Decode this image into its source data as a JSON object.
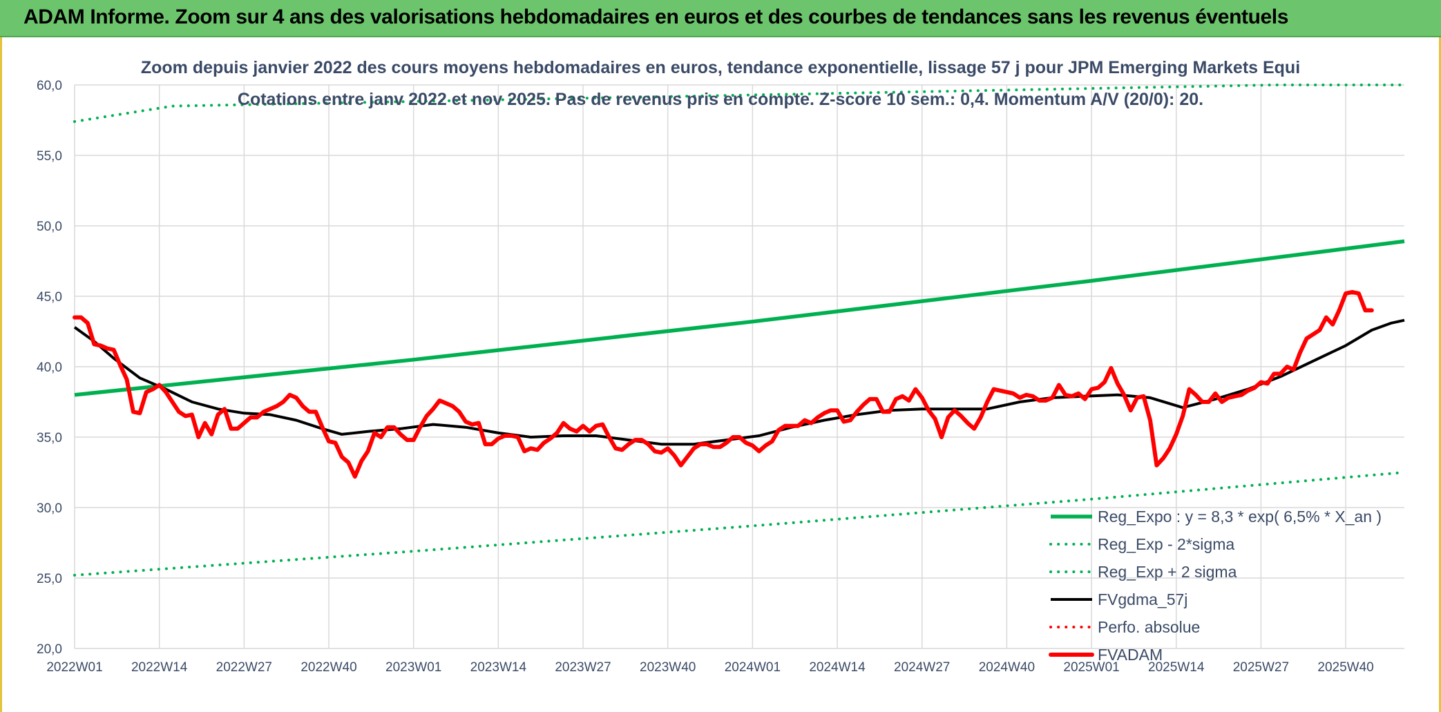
{
  "header": {
    "title": "ADAM Informe. Zoom sur 4 ans des valorisations hebdomadaires en euros et des courbes de tendances sans les revenus éventuels"
  },
  "colors": {
    "green": "#00b050",
    "red": "#ff0000",
    "black": "#000000",
    "grid": "#d9d9d9",
    "text": "#3a4a66",
    "banner": "#6cc56c"
  },
  "chart_data": {
    "type": "line",
    "title": "Zoom depuis janvier 2022 des cours moyens hebdomadaires en euros, tendance exponentielle, lissage 57 j pour JPM Emerging Markets Equi",
    "subtitle": "Cotations entre janv 2022 et nov 2025. Pas de revenus pris en compte. Z-score 10 sem.: 0,4. Momentum A/V (20/0): 20.",
    "xlabel": "",
    "ylabel": "",
    "ylim": [
      20,
      60
    ],
    "yticks": [
      "20,0",
      "25,0",
      "30,0",
      "35,0",
      "40,0",
      "45,0",
      "50,0",
      "55,0",
      "60,0"
    ],
    "yticks_values": [
      20,
      25,
      30,
      35,
      40,
      45,
      50,
      55,
      60
    ],
    "x_ticks": [
      {
        "i": 0,
        "label": "2022W01"
      },
      {
        "i": 13,
        "label": "2022W14"
      },
      {
        "i": 26,
        "label": "2022W27"
      },
      {
        "i": 39,
        "label": "2022W40"
      },
      {
        "i": 52,
        "label": "2023W01"
      },
      {
        "i": 65,
        "label": "2023W14"
      },
      {
        "i": 78,
        "label": "2023W27"
      },
      {
        "i": 91,
        "label": "2023W40"
      },
      {
        "i": 104,
        "label": "2024W01"
      },
      {
        "i": 117,
        "label": "2024W14"
      },
      {
        "i": 130,
        "label": "2024W27"
      },
      {
        "i": 143,
        "label": "2024W40"
      },
      {
        "i": 156,
        "label": "2025W01"
      },
      {
        "i": 169,
        "label": "2025W14"
      },
      {
        "i": 182,
        "label": "2025W27"
      },
      {
        "i": 195,
        "label": "2025W40"
      }
    ],
    "x_count": 205,
    "grid": true,
    "legend_position": "bottom-right",
    "series": [
      {
        "name": "Reg_Expo : y = 8,3 * exp( 6,5% * X_an )",
        "style": "solid",
        "color": "#00b050",
        "points": [
          [
            0,
            38.0
          ],
          [
            52,
            40.5
          ],
          [
            104,
            43.2
          ],
          [
            156,
            46.1
          ],
          [
            204,
            48.9
          ]
        ]
      },
      {
        "name": "Reg_Exp - 2*sigma",
        "style": "dotted",
        "color": "#00b050",
        "points": [
          [
            0,
            25.2
          ],
          [
            52,
            26.9
          ],
          [
            104,
            28.7
          ],
          [
            156,
            30.6
          ],
          [
            204,
            32.5
          ]
        ]
      },
      {
        "name": "Reg_Exp + 2 sigma",
        "style": "dotted",
        "color": "#00b050",
        "points": [
          [
            0,
            57.4
          ],
          [
            15,
            58.5
          ],
          [
            184,
            60.0
          ],
          [
            204,
            60.0
          ]
        ]
      },
      {
        "name": "FVgdma_57j",
        "style": "solid",
        "color": "#000000",
        "points": [
          [
            0,
            42.8
          ],
          [
            3,
            41.8
          ],
          [
            6,
            40.6
          ],
          [
            10,
            39.2
          ],
          [
            14,
            38.4
          ],
          [
            18,
            37.5
          ],
          [
            22,
            37.0
          ],
          [
            26,
            36.7
          ],
          [
            30,
            36.6
          ],
          [
            34,
            36.2
          ],
          [
            38,
            35.6
          ],
          [
            41,
            35.2
          ],
          [
            45,
            35.4
          ],
          [
            50,
            35.6
          ],
          [
            55,
            35.9
          ],
          [
            60,
            35.7
          ],
          [
            65,
            35.3
          ],
          [
            70,
            35.0
          ],
          [
            75,
            35.1
          ],
          [
            80,
            35.1
          ],
          [
            85,
            34.8
          ],
          [
            90,
            34.5
          ],
          [
            95,
            34.5
          ],
          [
            100,
            34.8
          ],
          [
            105,
            35.1
          ],
          [
            110,
            35.7
          ],
          [
            115,
            36.2
          ],
          [
            120,
            36.6
          ],
          [
            125,
            36.9
          ],
          [
            130,
            37.0
          ],
          [
            135,
            37.0
          ],
          [
            140,
            37.0
          ],
          [
            145,
            37.5
          ],
          [
            150,
            37.8
          ],
          [
            155,
            37.9
          ],
          [
            160,
            38.0
          ],
          [
            165,
            37.8
          ],
          [
            170,
            37.1
          ],
          [
            175,
            37.7
          ],
          [
            180,
            38.4
          ],
          [
            185,
            39.3
          ],
          [
            190,
            40.4
          ],
          [
            195,
            41.5
          ],
          [
            199,
            42.6
          ],
          [
            202,
            43.1
          ],
          [
            204,
            43.3
          ]
        ]
      },
      {
        "name": "Perfo. absolue",
        "style": "dotted",
        "color": "#ff0000",
        "points": []
      },
      {
        "name": "FVADAM",
        "style": "thick",
        "color": "#ff0000",
        "points": [
          [
            0,
            43.5
          ],
          [
            1,
            43.5
          ],
          [
            2,
            43.1
          ],
          [
            3,
            41.6
          ],
          [
            4,
            41.5
          ],
          [
            5,
            41.3
          ],
          [
            6,
            41.2
          ],
          [
            7,
            40.1
          ],
          [
            8,
            39.1
          ],
          [
            9,
            36.8
          ],
          [
            10,
            36.7
          ],
          [
            11,
            38.2
          ],
          [
            12,
            38.4
          ],
          [
            13,
            38.7
          ],
          [
            14,
            38.2
          ],
          [
            15,
            37.5
          ],
          [
            16,
            36.8
          ],
          [
            17,
            36.5
          ],
          [
            18,
            36.6
          ],
          [
            19,
            35.0
          ],
          [
            20,
            36.0
          ],
          [
            21,
            35.2
          ],
          [
            22,
            36.6
          ],
          [
            23,
            37.0
          ],
          [
            24,
            35.6
          ],
          [
            25,
            35.6
          ],
          [
            26,
            36.0
          ],
          [
            27,
            36.4
          ],
          [
            28,
            36.4
          ],
          [
            29,
            36.8
          ],
          [
            30,
            37.0
          ],
          [
            31,
            37.2
          ],
          [
            32,
            37.5
          ],
          [
            33,
            38.0
          ],
          [
            34,
            37.8
          ],
          [
            35,
            37.2
          ],
          [
            36,
            36.8
          ],
          [
            37,
            36.8
          ],
          [
            38,
            35.7
          ],
          [
            39,
            34.7
          ],
          [
            40,
            34.6
          ],
          [
            41,
            33.6
          ],
          [
            42,
            33.2
          ],
          [
            43,
            32.2
          ],
          [
            44,
            33.3
          ],
          [
            45,
            34.0
          ],
          [
            46,
            35.3
          ],
          [
            47,
            35.0
          ],
          [
            48,
            35.7
          ],
          [
            49,
            35.7
          ],
          [
            50,
            35.2
          ],
          [
            51,
            34.8
          ],
          [
            52,
            34.8
          ],
          [
            53,
            35.7
          ],
          [
            54,
            36.5
          ],
          [
            55,
            37.0
          ],
          [
            56,
            37.6
          ],
          [
            57,
            37.4
          ],
          [
            58,
            37.2
          ],
          [
            59,
            36.8
          ],
          [
            60,
            36.1
          ],
          [
            61,
            35.9
          ],
          [
            62,
            36.0
          ],
          [
            63,
            34.5
          ],
          [
            64,
            34.5
          ],
          [
            65,
            34.9
          ],
          [
            66,
            35.1
          ],
          [
            67,
            35.1
          ],
          [
            68,
            35.0
          ],
          [
            69,
            34.0
          ],
          [
            70,
            34.2
          ],
          [
            71,
            34.1
          ],
          [
            72,
            34.6
          ],
          [
            73,
            34.9
          ],
          [
            74,
            35.3
          ],
          [
            75,
            36.0
          ],
          [
            76,
            35.6
          ],
          [
            77,
            35.4
          ],
          [
            78,
            35.8
          ],
          [
            79,
            35.4
          ],
          [
            80,
            35.8
          ],
          [
            81,
            35.9
          ],
          [
            82,
            35.0
          ],
          [
            83,
            34.2
          ],
          [
            84,
            34.1
          ],
          [
            85,
            34.5
          ],
          [
            86,
            34.8
          ],
          [
            87,
            34.8
          ],
          [
            88,
            34.5
          ],
          [
            89,
            34.0
          ],
          [
            90,
            33.9
          ],
          [
            91,
            34.2
          ],
          [
            92,
            33.7
          ],
          [
            93,
            33.0
          ],
          [
            94,
            33.6
          ],
          [
            95,
            34.2
          ],
          [
            96,
            34.5
          ],
          [
            97,
            34.5
          ],
          [
            98,
            34.3
          ],
          [
            99,
            34.3
          ],
          [
            100,
            34.6
          ],
          [
            101,
            35.0
          ],
          [
            102,
            35.0
          ],
          [
            103,
            34.6
          ],
          [
            104,
            34.4
          ],
          [
            105,
            34.0
          ],
          [
            106,
            34.4
          ],
          [
            107,
            34.7
          ],
          [
            108,
            35.5
          ],
          [
            109,
            35.8
          ],
          [
            110,
            35.8
          ],
          [
            111,
            35.8
          ],
          [
            112,
            36.2
          ],
          [
            113,
            36.0
          ],
          [
            114,
            36.4
          ],
          [
            115,
            36.7
          ],
          [
            116,
            36.9
          ],
          [
            117,
            36.9
          ],
          [
            118,
            36.1
          ],
          [
            119,
            36.2
          ],
          [
            120,
            36.8
          ],
          [
            121,
            37.3
          ],
          [
            122,
            37.7
          ],
          [
            123,
            37.7
          ],
          [
            124,
            36.8
          ],
          [
            125,
            36.8
          ],
          [
            126,
            37.7
          ],
          [
            127,
            37.9
          ],
          [
            128,
            37.6
          ],
          [
            129,
            38.4
          ],
          [
            130,
            37.8
          ],
          [
            131,
            36.9
          ],
          [
            132,
            36.3
          ],
          [
            133,
            35.0
          ],
          [
            134,
            36.4
          ],
          [
            135,
            36.9
          ],
          [
            136,
            36.5
          ],
          [
            137,
            36.0
          ],
          [
            138,
            35.6
          ],
          [
            139,
            36.4
          ],
          [
            140,
            37.5
          ],
          [
            141,
            38.4
          ],
          [
            142,
            38.3
          ],
          [
            143,
            38.2
          ],
          [
            144,
            38.1
          ],
          [
            145,
            37.8
          ],
          [
            146,
            38.0
          ],
          [
            147,
            37.9
          ],
          [
            148,
            37.6
          ],
          [
            149,
            37.6
          ],
          [
            150,
            37.8
          ],
          [
            151,
            38.7
          ],
          [
            152,
            38.0
          ],
          [
            153,
            37.9
          ],
          [
            154,
            38.1
          ],
          [
            155,
            37.7
          ],
          [
            156,
            38.4
          ],
          [
            157,
            38.5
          ],
          [
            158,
            38.9
          ],
          [
            159,
            39.9
          ],
          [
            160,
            38.8
          ],
          [
            161,
            38.0
          ],
          [
            162,
            36.9
          ],
          [
            163,
            37.8
          ],
          [
            164,
            37.9
          ],
          [
            165,
            36.2
          ],
          [
            166,
            33.0
          ],
          [
            167,
            33.5
          ],
          [
            168,
            34.2
          ],
          [
            169,
            35.2
          ],
          [
            170,
            36.5
          ],
          [
            171,
            38.4
          ],
          [
            172,
            38.0
          ],
          [
            173,
            37.5
          ],
          [
            174,
            37.5
          ],
          [
            175,
            38.1
          ],
          [
            176,
            37.5
          ],
          [
            177,
            37.8
          ],
          [
            178,
            37.9
          ],
          [
            179,
            38.0
          ],
          [
            180,
            38.3
          ],
          [
            181,
            38.5
          ],
          [
            182,
            38.9
          ],
          [
            183,
            38.8
          ],
          [
            184,
            39.5
          ],
          [
            185,
            39.5
          ],
          [
            186,
            40.0
          ],
          [
            187,
            39.8
          ],
          [
            188,
            41.0
          ],
          [
            189,
            42.0
          ],
          [
            190,
            42.3
          ],
          [
            191,
            42.6
          ],
          [
            192,
            43.5
          ],
          [
            193,
            43.0
          ],
          [
            194,
            44.0
          ],
          [
            195,
            45.2
          ],
          [
            196,
            45.3
          ],
          [
            197,
            45.2
          ],
          [
            198,
            44.0
          ],
          [
            199,
            44.0
          ]
        ]
      }
    ]
  }
}
